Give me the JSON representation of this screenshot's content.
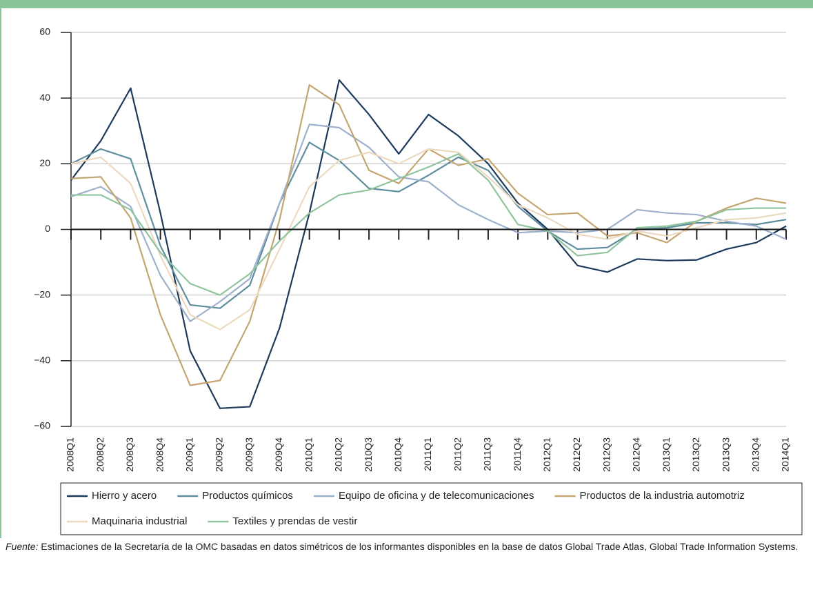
{
  "chart_data": {
    "type": "line",
    "categories": [
      "2008Q1",
      "2008Q2",
      "2008Q3",
      "2008Q4",
      "2009Q1",
      "2009Q2",
      "2009Q3",
      "2009Q4",
      "2010Q1",
      "2010Q2",
      "2010Q3",
      "2010Q4",
      "2011Q1",
      "2011Q2",
      "2011Q3",
      "2011Q4",
      "2012Q1",
      "2012Q2",
      "2012Q3",
      "2012Q4",
      "2013Q1",
      "2013Q2",
      "2013Q3",
      "2013Q4",
      "2014Q1"
    ],
    "series": [
      {
        "name": "Hierro y acero",
        "color": "#1b3a5c",
        "values": [
          15,
          27,
          43,
          5,
          -37,
          -54.5,
          -54,
          -30,
          5,
          45.5,
          35,
          23,
          35,
          28.5,
          20,
          8,
          0,
          -11,
          -13,
          -9,
          -9.5,
          -9.3,
          -6,
          -4,
          1
        ]
      },
      {
        "name": "Productos químicos",
        "color": "#5e8d9e",
        "values": [
          20,
          24.5,
          21.5,
          -5,
          -23,
          -24,
          -17,
          8,
          26.5,
          21,
          12.5,
          11.5,
          16.5,
          22,
          18,
          7,
          -0.5,
          -6,
          -5.5,
          0,
          0.5,
          2,
          2,
          1.5,
          3
        ]
      },
      {
        "name": "Equipo de oficina y de telecomunicaciones",
        "color": "#9db0cc",
        "values": [
          10,
          13,
          7,
          -14,
          -28,
          -22,
          -15,
          8,
          32,
          31,
          25,
          16,
          14.5,
          7.5,
          3,
          -1,
          -0.5,
          -1,
          0,
          6,
          5,
          4.5,
          2.5,
          1,
          -3
        ]
      },
      {
        "name": "Productos de la industria automotriz",
        "color": "#c4a56f",
        "values": [
          15.5,
          16,
          3.5,
          -26,
          -47.5,
          -46,
          -28,
          3,
          44,
          38,
          18,
          14,
          24.5,
          19.5,
          21.5,
          11,
          4.5,
          5,
          -2,
          -1,
          -4,
          2.5,
          6.5,
          9.5,
          8
        ]
      },
      {
        "name": "Maquinaria industrial",
        "color": "#ecd9c0",
        "values": [
          20,
          22,
          14,
          -8,
          -26,
          -30.5,
          -24.5,
          -6,
          13,
          21,
          23.5,
          20,
          24.5,
          23.5,
          16,
          7.5,
          3.5,
          -1.5,
          -3,
          -0.5,
          -2,
          0.5,
          3,
          3.5,
          5
        ]
      },
      {
        "name": "Textiles y prendas de vestir",
        "color": "#8fc49d",
        "values": [
          10.5,
          10.5,
          6,
          -7,
          -16.5,
          -20,
          -13.5,
          -3.5,
          5,
          10.5,
          12,
          15.5,
          19,
          23,
          15,
          1.5,
          -0.5,
          -8,
          -7,
          0.5,
          1,
          2.5,
          6,
          6.5,
          6.5
        ]
      }
    ],
    "ylim": [
      -60,
      60
    ],
    "yticks": [
      {
        "value": -60,
        "label": "−60"
      },
      {
        "value": -40,
        "label": "−40"
      },
      {
        "value": -20,
        "label": "−20"
      },
      0,
      20,
      40,
      60
    ],
    "grid": true,
    "legend": "bottom",
    "source_label": "Fuente:",
    "source": " Estimaciones de la Secretaría de la OMC basadas en datos simétricos de los informantes disponibles en la base de datos Global Trade Atlas, Global Trade Information Systems."
  }
}
